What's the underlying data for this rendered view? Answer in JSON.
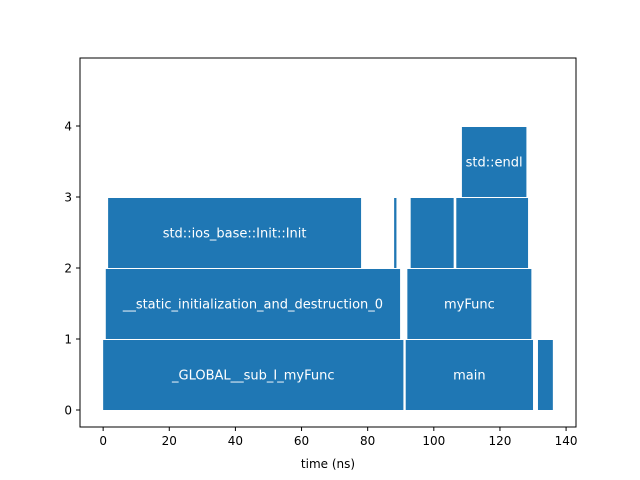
{
  "chart_data": {
    "type": "bar",
    "orientation": "horizontal",
    "xlabel": "time (ns)",
    "ylabel": "",
    "title": "",
    "xlim": [
      -7,
      143
    ],
    "ylim": [
      -0.2,
      4.95
    ],
    "xticks": [
      0,
      20,
      40,
      60,
      80,
      100,
      120,
      140
    ],
    "yticks": [
      0,
      1,
      2,
      3,
      4
    ],
    "grid": false,
    "bar_color": "#1f77b4",
    "label_color": "#ffffff",
    "bars": [
      {
        "level": 0,
        "start": 0.0,
        "end": 90.8,
        "label": "_GLOBAL__sub_I_myFunc"
      },
      {
        "level": 0,
        "start": 91.5,
        "end": 130.0,
        "label": "main"
      },
      {
        "level": 0,
        "start": 131.5,
        "end": 136.0,
        "label": ""
      },
      {
        "level": 1,
        "start": 0.8,
        "end": 89.8,
        "label": "__static_initialization_and_destruction_0"
      },
      {
        "level": 1,
        "start": 92.0,
        "end": 129.5,
        "label": "myFunc"
      },
      {
        "level": 2,
        "start": 1.5,
        "end": 78.0,
        "label": "std::ios_base::Init::Init"
      },
      {
        "level": 2,
        "start": 88.0,
        "end": 88.7,
        "label": ""
      },
      {
        "level": 2,
        "start": 93.0,
        "end": 106.0,
        "label": ""
      },
      {
        "level": 2,
        "start": 106.8,
        "end": 128.5,
        "label": ""
      },
      {
        "level": 3,
        "start": 108.5,
        "end": 128.0,
        "label": "std::endl"
      }
    ]
  }
}
